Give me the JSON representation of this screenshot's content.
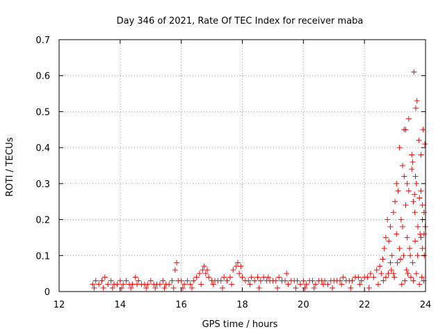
{
  "chart_data": {
    "type": "scatter",
    "title": "Day 346 of 2021, Rate Of TEC Index for receiver maba",
    "xlabel": "GPS time / hours",
    "ylabel": "ROTI / TECUs",
    "xlim": [
      12,
      24
    ],
    "ylim": [
      0,
      0.7
    ],
    "xticks": [
      12,
      14,
      16,
      18,
      20,
      22,
      24
    ],
    "yticks": [
      0,
      0.1,
      0.2,
      0.3,
      0.4,
      0.5,
      0.6,
      0.7
    ],
    "xtick_labels": [
      "12",
      "14",
      "16",
      "18",
      "20",
      "22",
      "24"
    ],
    "ytick_labels": [
      "0",
      "0.1",
      "0.2",
      "0.3",
      "0.4",
      "0.5",
      "0.6",
      "0.7"
    ],
    "grid": true,
    "marker": "+",
    "color": "#ff0000",
    "series": [
      {
        "x": [
          13.1,
          13.2,
          13.3,
          13.4,
          13.5,
          13.6,
          13.7,
          13.8,
          13.9,
          14.0,
          14.1,
          14.2,
          14.3,
          14.4,
          14.5,
          14.6,
          14.7,
          14.8,
          14.9,
          15.0,
          15.1,
          15.2,
          15.3,
          15.4,
          15.5,
          15.6,
          15.7,
          15.8,
          15.9,
          16.0,
          16.1,
          16.2,
          16.3,
          16.4,
          16.5,
          16.6,
          16.7,
          16.8,
          16.9,
          17.0,
          17.1,
          17.2,
          17.3,
          17.4,
          17.5,
          17.6,
          17.7,
          17.8,
          17.9,
          18.0,
          18.1,
          18.2,
          18.3,
          18.4,
          18.5,
          18.6,
          18.7,
          18.8,
          18.9,
          19.0,
          19.1,
          19.2,
          19.3,
          19.4,
          19.5,
          19.6,
          19.7,
          19.8,
          19.9,
          20.0,
          20.1,
          20.2,
          20.3,
          20.4,
          20.5,
          20.6,
          20.7,
          20.8,
          20.9,
          21.0,
          21.1,
          21.2,
          21.3,
          21.4,
          21.5,
          21.6,
          21.7,
          21.8,
          21.9,
          22.0,
          22.1,
          22.2,
          22.3,
          22.4,
          22.5,
          22.6,
          22.65,
          22.7,
          22.75,
          22.8,
          22.85,
          22.9,
          22.95,
          23.0,
          23.05,
          23.1,
          23.15,
          23.2,
          23.25,
          23.3,
          23.35,
          23.4,
          23.45,
          23.5,
          23.55,
          23.6,
          23.65,
          23.7,
          23.75,
          23.8,
          23.85,
          23.9,
          23.95,
          13.15,
          13.45,
          13.75,
          14.05,
          14.35,
          14.55,
          14.85,
          15.15,
          15.45,
          15.75,
          15.85,
          16.05,
          16.35,
          16.65,
          16.75,
          16.85,
          17.05,
          17.35,
          17.65,
          17.85,
          17.95,
          18.25,
          18.55,
          18.85,
          19.15,
          19.45,
          19.75,
          20.05,
          20.35,
          20.65,
          20.95,
          21.25,
          21.55,
          21.85,
          22.15,
          22.45,
          22.55,
          22.7,
          22.85,
          22.95,
          23.05,
          23.15,
          23.25,
          23.35,
          23.45,
          23.55,
          23.62,
          23.68,
          23.72,
          23.78,
          23.85,
          23.92,
          23.98,
          22.62,
          22.78,
          22.88,
          22.98,
          23.08,
          23.18,
          23.28,
          23.38,
          23.48,
          23.58,
          23.66,
          23.74,
          23.82,
          23.9,
          23.96,
          23.22,
          23.32,
          23.42,
          23.52,
          23.6,
          23.7,
          23.8,
          23.88,
          23.94,
          23.3,
          23.4,
          23.58,
          23.64,
          23.67,
          23.85,
          23.9,
          23.95,
          23.99
        ],
        "y": [
          0.02,
          0.03,
          0.02,
          0.03,
          0.04,
          0.02,
          0.03,
          0.02,
          0.02,
          0.03,
          0.02,
          0.03,
          0.02,
          0.02,
          0.04,
          0.03,
          0.02,
          0.02,
          0.02,
          0.03,
          0.02,
          0.02,
          0.02,
          0.03,
          0.02,
          0.02,
          0.03,
          0.06,
          0.03,
          0.03,
          0.02,
          0.03,
          0.02,
          0.03,
          0.04,
          0.05,
          0.06,
          0.05,
          0.04,
          0.03,
          0.03,
          0.03,
          0.03,
          0.04,
          0.03,
          0.04,
          0.06,
          0.07,
          0.05,
          0.04,
          0.03,
          0.03,
          0.04,
          0.03,
          0.04,
          0.03,
          0.04,
          0.03,
          0.03,
          0.03,
          0.03,
          0.04,
          0.03,
          0.03,
          0.02,
          0.03,
          0.03,
          0.03,
          0.02,
          0.03,
          0.02,
          0.03,
          0.03,
          0.02,
          0.03,
          0.03,
          0.03,
          0.02,
          0.03,
          0.03,
          0.03,
          0.03,
          0.04,
          0.03,
          0.03,
          0.03,
          0.04,
          0.04,
          0.03,
          0.04,
          0.04,
          0.05,
          0.04,
          0.06,
          0.07,
          0.09,
          0.12,
          0.15,
          0.2,
          0.14,
          0.18,
          0.1,
          0.22,
          0.25,
          0.16,
          0.28,
          0.12,
          0.2,
          0.18,
          0.32,
          0.24,
          0.15,
          0.28,
          0.1,
          0.34,
          0.25,
          0.22,
          0.3,
          0.18,
          0.26,
          0.15,
          0.2,
          0.22,
          0.01,
          0.01,
          0.01,
          0.01,
          0.01,
          0.02,
          0.01,
          0.01,
          0.01,
          0.01,
          0.08,
          0.01,
          0.01,
          0.02,
          0.07,
          0.06,
          0.02,
          0.01,
          0.02,
          0.08,
          0.07,
          0.02,
          0.01,
          0.04,
          0.01,
          0.05,
          0.01,
          0.01,
          0.01,
          0.02,
          0.01,
          0.02,
          0.01,
          0.02,
          0.01,
          0.02,
          0.05,
          0.04,
          0.08,
          0.05,
          0.3,
          0.4,
          0.35,
          0.45,
          0.48,
          0.38,
          0.61,
          0.51,
          0.53,
          0.42,
          0.38,
          0.45,
          0.41,
          0.03,
          0.05,
          0.06,
          0.04,
          0.08,
          0.09,
          0.1,
          0.06,
          0.12,
          0.08,
          0.14,
          0.1,
          0.16,
          0.12,
          0.1,
          0.02,
          0.03,
          0.05,
          0.04,
          0.03,
          0.05,
          0.02,
          0.04,
          0.03,
          0.45,
          0.3,
          0.36,
          0.27,
          0.32,
          0.28,
          0.24,
          0.16,
          0.18
        ]
      }
    ]
  }
}
